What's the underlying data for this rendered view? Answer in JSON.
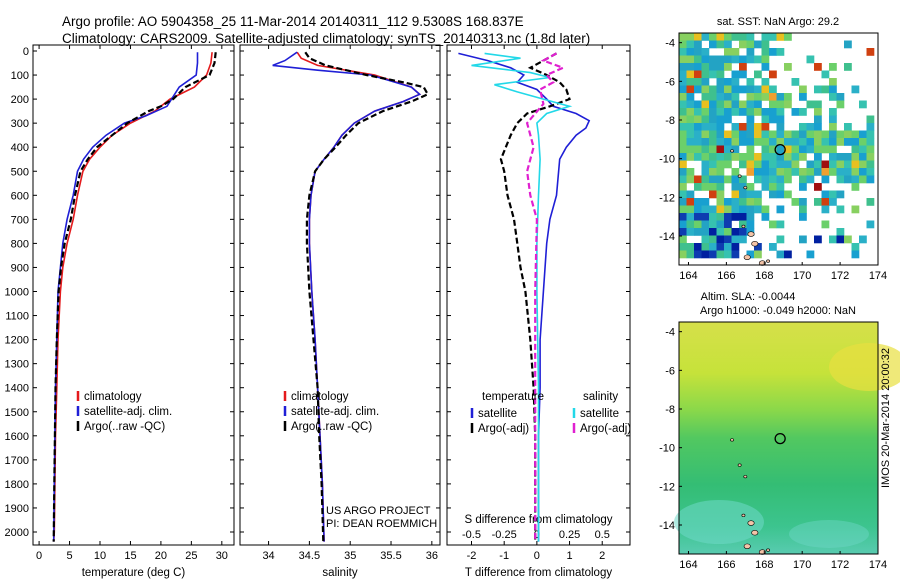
{
  "header": {
    "line1": "Argo profile: AO 5904358_25 11-Mar-2014 20140311_112 9.5308S 168.837E",
    "line2": "Climatology: CARS2009. Satellite-adjusted climatology: synTS_20140313.nc (1.8d later)"
  },
  "project": {
    "line1": "US ARGO PROJECT",
    "line2": "PI: DEAN ROEMMICH"
  },
  "stamp": "IMOS 20-Mar-2014 20:00:32",
  "colors": {
    "red": "#e41a1c",
    "blue": "#1f1fd6",
    "black": "#000000",
    "cyan": "#22d8e8",
    "magenta": "#e020d0"
  },
  "chart_data": [
    {
      "type": "line",
      "title": "",
      "xlabel": "temperature (deg C)",
      "ylabel": "",
      "xlim": [
        -1,
        32
      ],
      "ylim": [
        2050,
        0
      ],
      "xticks": [
        0,
        5,
        10,
        15,
        20,
        25,
        30
      ],
      "yticks": [
        0,
        100,
        200,
        300,
        400,
        500,
        600,
        700,
        800,
        900,
        1000,
        1100,
        1200,
        1300,
        1400,
        1500,
        1600,
        1700,
        1800,
        1900,
        2000
      ],
      "legend": [
        "climatology",
        "satellite-adj. clim.",
        "Argo(..raw -QC)"
      ],
      "series": [
        {
          "name": "climatology",
          "color": "red",
          "dash": "",
          "x": [
            28.4,
            28.2,
            27.5,
            25.5,
            21.5,
            19,
            15,
            12,
            10,
            8.3,
            7.2,
            6.3,
            5.6,
            4.6,
            3.9,
            3.5,
            3.1,
            2.9,
            2.7,
            2.6,
            2.5,
            2.4
          ],
          "y": [
            5,
            50,
            100,
            150,
            200,
            250,
            300,
            350,
            400,
            450,
            500,
            600,
            700,
            800,
            900,
            1000,
            1200,
            1400,
            1600,
            1800,
            2000,
            2040
          ]
        },
        {
          "name": "satellite-adj. clim.",
          "color": "blue",
          "dash": "",
          "x": [
            26,
            26,
            25.8,
            23,
            21,
            17.5,
            14,
            11,
            8.8,
            7.3,
            6.3,
            5.6,
            4.6,
            3.9,
            3.5,
            3.1,
            2.9,
            2.7,
            2.6,
            2.5,
            2.4
          ],
          "y": [
            5,
            50,
            100,
            150,
            230,
            270,
            300,
            350,
            400,
            450,
            500,
            600,
            700,
            800,
            900,
            1000,
            1200,
            1400,
            1600,
            1800,
            2040
          ]
        },
        {
          "name": "Argo(..raw -QC)",
          "color": "black",
          "dash": "6,3",
          "x": [
            29,
            28.8,
            28,
            24,
            22,
            20,
            18,
            14.5,
            12,
            9.5,
            8,
            6.8,
            5.9,
            5.2,
            4.2,
            3.6,
            3.2,
            2.9,
            2.7,
            2.6,
            2.5,
            2.4
          ],
          "y": [
            5,
            50,
            100,
            150,
            200,
            230,
            250,
            300,
            350,
            400,
            450,
            500,
            600,
            700,
            800,
            900,
            1000,
            1200,
            1400,
            1600,
            1800,
            2040
          ]
        }
      ]
    },
    {
      "type": "line",
      "title": "",
      "xlabel": "salinity",
      "ylabel": "",
      "xlim": [
        33.65,
        36.1
      ],
      "ylim": [
        2050,
        0
      ],
      "xticks": [
        34,
        34.5,
        35,
        35.5,
        36
      ],
      "legend": [
        "climatology",
        "satellite-adj. clim.",
        "Argo(..raw -QC)"
      ],
      "series": [
        {
          "name": "climatology",
          "color": "red",
          "dash": "",
          "x": [
            34.35,
            34.4,
            34.6,
            35.3,
            35.75,
            35.85,
            35.65,
            35.3,
            35.05,
            34.9,
            34.8,
            34.68,
            34.57,
            34.52,
            34.5,
            34.5,
            34.53,
            34.57,
            34.6,
            34.63,
            34.66,
            34.68
          ],
          "y": [
            5,
            30,
            60,
            100,
            150,
            180,
            210,
            250,
            300,
            350,
            400,
            450,
            500,
            600,
            700,
            800,
            1000,
            1200,
            1400,
            1600,
            1800,
            2040
          ]
        },
        {
          "name": "satellite-adj. clim.",
          "color": "blue",
          "dash": "",
          "x": [
            34.35,
            34.2,
            34.05,
            34.6,
            35.25,
            35.75,
            35.85,
            35.65,
            35.3,
            35.05,
            34.9,
            34.8,
            34.68,
            34.57,
            34.52,
            34.5,
            34.5,
            34.53,
            34.57,
            34.6,
            34.63,
            34.66,
            34.68
          ],
          "y": [
            5,
            40,
            60,
            80,
            100,
            150,
            180,
            210,
            250,
            300,
            350,
            400,
            450,
            500,
            600,
            700,
            800,
            1000,
            1200,
            1400,
            1600,
            1800,
            2040
          ]
        },
        {
          "name": "Argo(..raw -QC)",
          "color": "black",
          "dash": "6,3",
          "x": [
            34.45,
            34.5,
            34.7,
            35.2,
            35.65,
            35.9,
            35.95,
            35.75,
            35.4,
            35.1,
            34.95,
            34.82,
            34.68,
            34.57,
            34.5,
            34.47,
            34.47,
            34.5,
            34.55,
            34.6,
            34.62,
            34.65,
            34.67
          ],
          "y": [
            5,
            30,
            60,
            100,
            130,
            150,
            180,
            210,
            250,
            300,
            350,
            400,
            450,
            500,
            600,
            700,
            800,
            1000,
            1200,
            1400,
            1600,
            1800,
            2040
          ]
        }
      ]
    },
    {
      "type": "line",
      "title": "",
      "xlabel": "T difference from climatology",
      "ylabel": "",
      "xlim": [
        -2.75,
        2.85
      ],
      "ylim": [
        2050,
        0
      ],
      "xticks": [
        -2,
        -1,
        0,
        1,
        2
      ],
      "secondary_axis": {
        "label": "S difference from climatology",
        "ticks": [
          -0.5,
          -0.25,
          0,
          0.25,
          0.5
        ]
      },
      "legend_headers": [
        "temperature",
        "salinity"
      ],
      "legend": [
        "satellite",
        "Argo(-adj)",
        "satellite",
        "Argo(-adj)"
      ],
      "series": [
        {
          "name": "satellite (temperature)",
          "color": "blue",
          "dash": "",
          "x": [
            -2.4,
            -1.5,
            -0.8,
            -0.4,
            -0.6,
            0,
            0.3,
            0.5,
            1.2,
            1.6,
            1.5,
            1.2,
            0.9,
            0.7,
            0.6,
            0.4,
            0.3,
            0.2,
            0.1,
            0.1,
            0.05,
            0.05,
            0.05
          ],
          "y": [
            10,
            40,
            70,
            100,
            130,
            160,
            200,
            230,
            260,
            290,
            320,
            350,
            400,
            450,
            600,
            700,
            800,
            1000,
            1200,
            1400,
            1600,
            1800,
            2040
          ]
        },
        {
          "name": "Argo(-adj) (temperature)",
          "color": "black",
          "dash": "6,3",
          "x": [
            0.6,
            0.2,
            -0.2,
            0.3,
            0.7,
            0.9,
            1.0,
            0.4,
            -0.3,
            -0.6,
            -0.8,
            -1.1,
            -1.0,
            -0.9,
            -0.7,
            -0.6,
            -0.5,
            -0.35,
            -0.2,
            -0.1,
            -0.05,
            -0.05
          ],
          "y": [
            10,
            40,
            70,
            100,
            130,
            160,
            200,
            230,
            260,
            300,
            350,
            450,
            500,
            600,
            700,
            800,
            900,
            1000,
            1200,
            1400,
            1600,
            2040
          ]
        },
        {
          "name": "satellite (salinity)",
          "color": "cyan",
          "dash": "",
          "x": [
            -1.6,
            -0.5,
            -2.0,
            -0.2,
            0.4,
            -1.3,
            -0.6,
            0.2,
            1.0,
            0.3,
            0.0,
            0.05,
            0.1,
            0.05,
            0.0,
            0.0,
            0.05,
            0.05,
            0.05
          ],
          "y": [
            10,
            30,
            60,
            90,
            110,
            140,
            170,
            200,
            230,
            260,
            300,
            350,
            450,
            600,
            800,
            1000,
            1400,
            1800,
            2040
          ]
        },
        {
          "name": "Argo(-adj) (salinity)",
          "color": "magenta",
          "dash": "6,3",
          "x": [
            0.6,
            0.2,
            0.8,
            0.3,
            0.5,
            0.1,
            0.2,
            -0.3,
            -0.1,
            -0.3,
            -0.2,
            0.0,
            -0.05,
            -0.05,
            -0.05,
            -0.05
          ],
          "y": [
            10,
            40,
            70,
            100,
            130,
            160,
            220,
            300,
            400,
            500,
            600,
            700,
            1000,
            1400,
            1800,
            2040
          ]
        }
      ]
    },
    {
      "type": "heatmap",
      "title": "sat. SST: NaN Argo: 29.2",
      "xlabel": "",
      "ylabel": "",
      "xlim": [
        163.5,
        174
      ],
      "ylim": [
        -15.5,
        -3.5
      ],
      "xticks": [
        164,
        166,
        168,
        170,
        172,
        174
      ],
      "yticks": [
        -4,
        -6,
        -8,
        -10,
        -12,
        -14
      ],
      "marker": {
        "lon": 168.837,
        "lat": -9.5308
      }
    },
    {
      "type": "heatmap",
      "title": "Altim. SLA: -0.0044",
      "subtitle": "Argo h1000: -0.049 h2000: NaN",
      "xlabel": "",
      "ylabel": "",
      "xlim": [
        163.5,
        174
      ],
      "ylim": [
        -15.5,
        -3.5
      ],
      "xticks": [
        164,
        166,
        168,
        170,
        172,
        174
      ],
      "yticks": [
        -4,
        -6,
        -8,
        -10,
        -12,
        -14
      ],
      "marker": {
        "lon": 168.837,
        "lat": -9.5308
      }
    }
  ]
}
